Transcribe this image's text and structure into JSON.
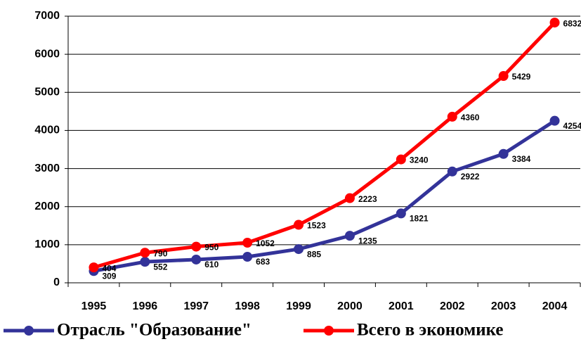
{
  "chart_data": {
    "type": "line",
    "categories": [
      "1995",
      "1996",
      "1997",
      "1998",
      "1999",
      "2000",
      "2001",
      "2002",
      "2003",
      "2004"
    ],
    "series": [
      {
        "name": "Отрасль \"Образование\"",
        "color": "#333399",
        "values": [
          309,
          552,
          610,
          683,
          885,
          1235,
          1821,
          2922,
          3384,
          4254
        ]
      },
      {
        "name": "Всего в экономике",
        "color": "#ff0000",
        "values": [
          404,
          790,
          950,
          1052,
          1523,
          2223,
          3240,
          4360,
          5429,
          6832
        ]
      }
    ],
    "ylim": [
      0,
      7000
    ],
    "yticks": [
      0,
      1000,
      2000,
      3000,
      4000,
      5000,
      6000,
      7000
    ],
    "grid": true,
    "legend": "bottom"
  }
}
